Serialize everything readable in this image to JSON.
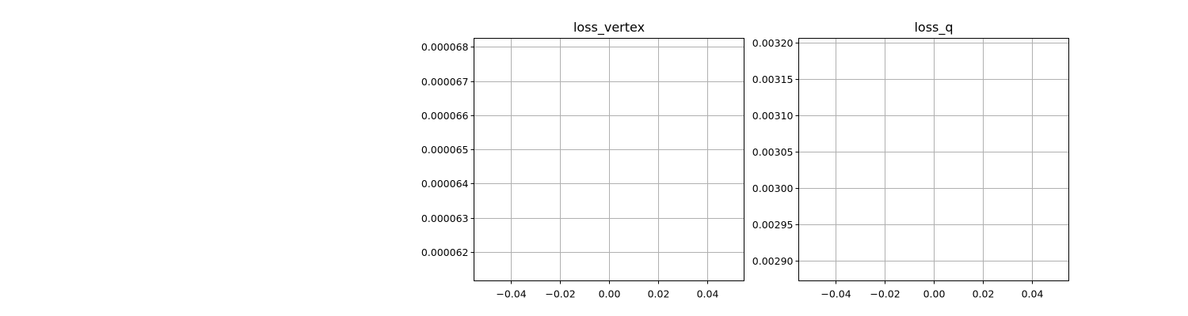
{
  "chart_data": [
    {
      "type": "line",
      "title": "loss_vertex",
      "xlabel": "",
      "ylabel": "",
      "xlim": [
        -0.055,
        0.055
      ],
      "ylim": [
        6.115e-05,
        6.825e-05
      ],
      "xticks": [
        -0.04,
        -0.02,
        0.0,
        0.02,
        0.04
      ],
      "xtick_labels": [
        "−0.04",
        "−0.02",
        "0.00",
        "0.02",
        "0.04"
      ],
      "yticks": [
        6.2e-05,
        6.3e-05,
        6.4e-05,
        6.5e-05,
        6.6e-05,
        6.7e-05,
        6.8e-05
      ],
      "ytick_labels": [
        "0.000062",
        "0.000063",
        "0.000064",
        "0.000065",
        "0.000066",
        "0.000067",
        "0.000068"
      ],
      "grid": true,
      "series": []
    },
    {
      "type": "line",
      "title": "loss_q",
      "xlabel": "",
      "ylabel": "",
      "xlim": [
        -0.055,
        0.055
      ],
      "ylim": [
        0.002872,
        0.003206
      ],
      "xticks": [
        -0.04,
        -0.02,
        0.0,
        0.02,
        0.04
      ],
      "xtick_labels": [
        "−0.04",
        "−0.02",
        "0.00",
        "0.02",
        "0.04"
      ],
      "yticks": [
        0.0029,
        0.00295,
        0.003,
        0.00305,
        0.0031,
        0.00315,
        0.0032
      ],
      "ytick_labels": [
        "0.00290",
        "0.00295",
        "0.00300",
        "0.00305",
        "0.00310",
        "0.00315",
        "0.00320"
      ],
      "grid": true,
      "series": []
    }
  ],
  "colors": {
    "grid": "#b0b0b0",
    "axes": "#000000",
    "background": "#ffffff"
  }
}
